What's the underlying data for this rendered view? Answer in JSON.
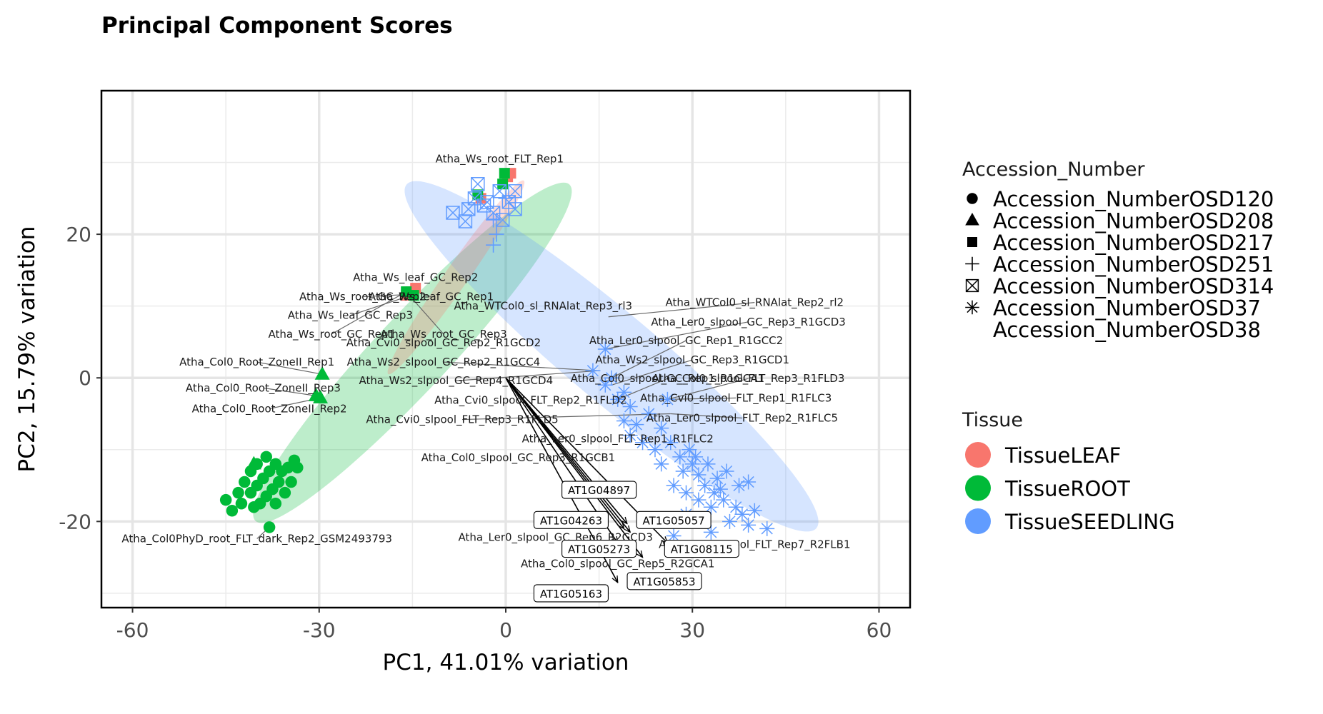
{
  "chart_data": {
    "type": "scatter",
    "title": "Principal Component Scores",
    "xlabel": "PC1, 41.01% variation",
    "ylabel": "PC2, 15.79% variation",
    "xlim": [
      -65,
      65
    ],
    "ylim": [
      -32,
      40
    ],
    "xticks": [
      -60,
      -30,
      0,
      30,
      60
    ],
    "xtick_labels": [
      "-60",
      "-30",
      "0",
      "30",
      "60"
    ],
    "yticks": [
      -20,
      0,
      20
    ],
    "ytick_labels": [
      "-20",
      "0",
      "20"
    ],
    "grid": true,
    "legend_position": "right",
    "tissue_colors": {
      "TissueLEAF": "#F8766D",
      "TissueROOT": "#00BA38",
      "TissueSEEDLING": "#619CFF"
    },
    "legends": {
      "shape": {
        "title": "Accession_Number",
        "entries": [
          {
            "label": "Accession_NumberOSD120",
            "shape": "circle"
          },
          {
            "label": "Accession_NumberOSD208",
            "shape": "triangle"
          },
          {
            "label": "Accession_NumberOSD217",
            "shape": "square"
          },
          {
            "label": "Accession_NumberOSD251",
            "shape": "plus"
          },
          {
            "label": "Accession_NumberOSD314",
            "shape": "boxcross"
          },
          {
            "label": "Accession_NumberOSD37",
            "shape": "asterisk"
          },
          {
            "label": "Accession_NumberOSD38",
            "shape": "none"
          }
        ]
      },
      "color": {
        "title": "Tissue",
        "entries": [
          {
            "label": "TissueLEAF",
            "color": "#F8766D"
          },
          {
            "label": "TissueROOT",
            "color": "#00BA38"
          },
          {
            "label": "TissueSEEDLING",
            "color": "#619CFF"
          }
        ]
      }
    },
    "ellipses": [
      {
        "tissue": "TissueROOT",
        "color": "#00BA38",
        "cx": -15,
        "cy": 3.5,
        "rx": 37,
        "ry": 5.2,
        "angle_deg": 47
      },
      {
        "tissue": "TissueSEEDLING",
        "color": "#619CFF",
        "cx": 17,
        "cy": 3,
        "rx": 43,
        "ry": 6.2,
        "angle_deg": -40
      },
      {
        "tissue": "TissueLEAF",
        "color": "#F8766D",
        "cx": -8,
        "cy": 14,
        "rx": 19,
        "ry": 1.6,
        "angle_deg": 55
      }
    ],
    "points": [
      {
        "tissue": "TissueROOT",
        "shape": "circle",
        "x": -45,
        "y": -17
      },
      {
        "tissue": "TissueROOT",
        "shape": "circle",
        "x": -44,
        "y": -18.5
      },
      {
        "tissue": "TissueROOT",
        "shape": "circle",
        "x": -43,
        "y": -16
      },
      {
        "tissue": "TissueROOT",
        "shape": "circle",
        "x": -42,
        "y": -14.5
      },
      {
        "tissue": "TissueROOT",
        "shape": "circle",
        "x": -42.5,
        "y": -17.5
      },
      {
        "tissue": "TissueROOT",
        "shape": "circle",
        "x": -41,
        "y": -13
      },
      {
        "tissue": "TissueROOT",
        "shape": "circle",
        "x": -41,
        "y": -16
      },
      {
        "tissue": "TissueROOT",
        "shape": "circle",
        "x": -40.5,
        "y": -18
      },
      {
        "tissue": "TissueROOT",
        "shape": "circle",
        "x": -40,
        "y": -12
      },
      {
        "tissue": "TissueROOT",
        "shape": "circle",
        "x": -40,
        "y": -15
      },
      {
        "tissue": "TissueROOT",
        "shape": "circle",
        "x": -39.5,
        "y": -17.5
      },
      {
        "tissue": "TissueROOT",
        "shape": "circle",
        "x": -39,
        "y": -14
      },
      {
        "tissue": "TissueROOT",
        "shape": "circle",
        "x": -38.5,
        "y": -11
      },
      {
        "tissue": "TissueROOT",
        "shape": "circle",
        "x": -38.5,
        "y": -16.5
      },
      {
        "tissue": "TissueROOT",
        "shape": "circle",
        "x": -38,
        "y": -13
      },
      {
        "tissue": "TissueROOT",
        "shape": "circle",
        "x": -37.5,
        "y": -15.5
      },
      {
        "tissue": "TissueROOT",
        "shape": "circle",
        "x": -37,
        "y": -12
      },
      {
        "tissue": "TissueROOT",
        "shape": "circle",
        "x": -37,
        "y": -17.5
      },
      {
        "tissue": "TissueROOT",
        "shape": "circle",
        "x": -36.5,
        "y": -14.5
      },
      {
        "tissue": "TissueROOT",
        "shape": "circle",
        "x": -36,
        "y": -13
      },
      {
        "tissue": "TissueROOT",
        "shape": "circle",
        "x": -35.5,
        "y": -16
      },
      {
        "tissue": "TissueROOT",
        "shape": "circle",
        "x": -35,
        "y": -12.5
      },
      {
        "tissue": "TissueROOT",
        "shape": "circle",
        "x": -34.5,
        "y": -14.5
      },
      {
        "tissue": "TissueROOT",
        "shape": "circle",
        "x": -34,
        "y": -11.5
      },
      {
        "tissue": "TissueROOT",
        "shape": "circle",
        "x": -33.5,
        "y": -12.5
      },
      {
        "tissue": "TissueROOT",
        "shape": "circle",
        "x": -38,
        "y": -20.8
      },
      {
        "tissue": "TissueROOT",
        "shape": "triangle",
        "x": -40.5,
        "y": -12
      },
      {
        "tissue": "TissueROOT",
        "shape": "triangle",
        "x": -29.5,
        "y": 0.5
      },
      {
        "tissue": "TissueROOT",
        "shape": "triangle",
        "x": -30.5,
        "y": -2.5
      },
      {
        "tissue": "TissueROOT",
        "shape": "triangle",
        "x": -29.8,
        "y": -2.8
      },
      {
        "tissue": "TissueLEAF",
        "shape": "square",
        "x": -16,
        "y": 11.5
      },
      {
        "tissue": "TissueLEAF",
        "shape": "square",
        "x": -15.2,
        "y": 12
      },
      {
        "tissue": "TissueLEAF",
        "shape": "square",
        "x": -14.5,
        "y": 12.5
      },
      {
        "tissue": "TissueLEAF",
        "shape": "square",
        "x": -4,
        "y": 25
      },
      {
        "tissue": "TissueLEAF",
        "shape": "square",
        "x": 0.3,
        "y": 28
      },
      {
        "tissue": "TissueLEAF",
        "shape": "square",
        "x": 0.8,
        "y": 28.5
      },
      {
        "tissue": "TissueROOT",
        "shape": "square",
        "x": -16,
        "y": 12
      },
      {
        "tissue": "TissueROOT",
        "shape": "square",
        "x": -14.8,
        "y": 11.5
      },
      {
        "tissue": "TissueROOT",
        "shape": "square",
        "x": -0.5,
        "y": 27
      },
      {
        "tissue": "TissueROOT",
        "shape": "square",
        "x": -0.2,
        "y": 28.5
      },
      {
        "tissue": "TissueROOT",
        "shape": "square",
        "x": -4.5,
        "y": 25.5
      },
      {
        "tissue": "TissueSEEDLING",
        "shape": "plus",
        "x": -2,
        "y": 22
      },
      {
        "tissue": "TissueSEEDLING",
        "shape": "plus",
        "x": -1.5,
        "y": 20
      },
      {
        "tissue": "TissueSEEDLING",
        "shape": "plus",
        "x": 0,
        "y": 25
      },
      {
        "tissue": "TissueSEEDLING",
        "shape": "plus",
        "x": -2,
        "y": 18.5
      },
      {
        "tissue": "TissueSEEDLING",
        "shape": "boxcross",
        "x": -8.5,
        "y": 23
      },
      {
        "tissue": "TissueSEEDLING",
        "shape": "boxcross",
        "x": -6.5,
        "y": 21.8
      },
      {
        "tissue": "TissueSEEDLING",
        "shape": "boxcross",
        "x": -6,
        "y": 23.5
      },
      {
        "tissue": "TissueSEEDLING",
        "shape": "boxcross",
        "x": -5,
        "y": 25
      },
      {
        "tissue": "TissueSEEDLING",
        "shape": "boxcross",
        "x": -4.5,
        "y": 27
      },
      {
        "tissue": "TissueSEEDLING",
        "shape": "boxcross",
        "x": -3,
        "y": 24.5
      },
      {
        "tissue": "TissueSEEDLING",
        "shape": "boxcross",
        "x": -2,
        "y": 23
      },
      {
        "tissue": "TissueSEEDLING",
        "shape": "boxcross",
        "x": -1,
        "y": 26
      },
      {
        "tissue": "TissueSEEDLING",
        "shape": "boxcross",
        "x": -0.5,
        "y": 22
      },
      {
        "tissue": "TissueSEEDLING",
        "shape": "boxcross",
        "x": 0.5,
        "y": 24.5
      },
      {
        "tissue": "TissueSEEDLING",
        "shape": "boxcross",
        "x": 1.5,
        "y": 26
      },
      {
        "tissue": "TissueSEEDLING",
        "shape": "boxcross",
        "x": 1.5,
        "y": 23.5
      },
      {
        "tissue": "TissueSEEDLING",
        "shape": "boxcross",
        "x": -3.5,
        "y": 24
      },
      {
        "tissue": "TissueSEEDLING",
        "shape": "asterisk",
        "x": 14,
        "y": 1
      },
      {
        "tissue": "TissueSEEDLING",
        "shape": "asterisk",
        "x": 16,
        "y": 4
      },
      {
        "tissue": "TissueSEEDLING",
        "shape": "asterisk",
        "x": 16,
        "y": -1
      },
      {
        "tissue": "TissueSEEDLING",
        "shape": "asterisk",
        "x": 17,
        "y": 0
      },
      {
        "tissue": "TissueSEEDLING",
        "shape": "asterisk",
        "x": 18,
        "y": -3
      },
      {
        "tissue": "TissueSEEDLING",
        "shape": "asterisk",
        "x": 19,
        "y": -2
      },
      {
        "tissue": "TissueSEEDLING",
        "shape": "asterisk",
        "x": 19,
        "y": -6
      },
      {
        "tissue": "TissueSEEDLING",
        "shape": "asterisk",
        "x": 20,
        "y": -4
      },
      {
        "tissue": "TissueSEEDLING",
        "shape": "asterisk",
        "x": 20,
        "y": -8
      },
      {
        "tissue": "TissueSEEDLING",
        "shape": "asterisk",
        "x": 21,
        "y": -6.5
      },
      {
        "tissue": "TissueSEEDLING",
        "shape": "asterisk",
        "x": 22,
        "y": -9
      },
      {
        "tissue": "TissueSEEDLING",
        "shape": "asterisk",
        "x": 23,
        "y": -5
      },
      {
        "tissue": "TissueSEEDLING",
        "shape": "asterisk",
        "x": 24,
        "y": -10
      },
      {
        "tissue": "TissueSEEDLING",
        "shape": "asterisk",
        "x": 25,
        "y": -7
      },
      {
        "tissue": "TissueSEEDLING",
        "shape": "asterisk",
        "x": 25,
        "y": -12
      },
      {
        "tissue": "TissueSEEDLING",
        "shape": "asterisk",
        "x": 26,
        "y": -3
      },
      {
        "tissue": "TissueSEEDLING",
        "shape": "asterisk",
        "x": 26.5,
        "y": -9
      },
      {
        "tissue": "TissueSEEDLING",
        "shape": "asterisk",
        "x": 27,
        "y": -15
      },
      {
        "tissue": "TissueSEEDLING",
        "shape": "asterisk",
        "x": 28,
        "y": -11
      },
      {
        "tissue": "TissueSEEDLING",
        "shape": "asterisk",
        "x": 28.5,
        "y": -13
      },
      {
        "tissue": "TissueSEEDLING",
        "shape": "asterisk",
        "x": 29,
        "y": -16
      },
      {
        "tissue": "TissueSEEDLING",
        "shape": "asterisk",
        "x": 29.5,
        "y": -10
      },
      {
        "tissue": "TissueSEEDLING",
        "shape": "asterisk",
        "x": 30,
        "y": -12
      },
      {
        "tissue": "TissueSEEDLING",
        "shape": "asterisk",
        "x": 30.5,
        "y": -11
      },
      {
        "tissue": "TissueSEEDLING",
        "shape": "asterisk",
        "x": 31,
        "y": -13.5
      },
      {
        "tissue": "TissueSEEDLING",
        "shape": "asterisk",
        "x": 31,
        "y": -17
      },
      {
        "tissue": "TissueSEEDLING",
        "shape": "asterisk",
        "x": 32,
        "y": -15
      },
      {
        "tissue": "TissueSEEDLING",
        "shape": "asterisk",
        "x": 32.5,
        "y": -12
      },
      {
        "tissue": "TissueSEEDLING",
        "shape": "asterisk",
        "x": 33,
        "y": -18
      },
      {
        "tissue": "TissueSEEDLING",
        "shape": "asterisk",
        "x": 33.5,
        "y": -16
      },
      {
        "tissue": "TissueSEEDLING",
        "shape": "asterisk",
        "x": 34,
        "y": -14
      },
      {
        "tissue": "TissueSEEDLING",
        "shape": "asterisk",
        "x": 34.5,
        "y": -15.5
      },
      {
        "tissue": "TissueSEEDLING",
        "shape": "asterisk",
        "x": 35,
        "y": -17
      },
      {
        "tissue": "TissueSEEDLING",
        "shape": "asterisk",
        "x": 35.5,
        "y": -13
      },
      {
        "tissue": "TissueSEEDLING",
        "shape": "asterisk",
        "x": 36,
        "y": -20
      },
      {
        "tissue": "TissueSEEDLING",
        "shape": "asterisk",
        "x": 37,
        "y": -18
      },
      {
        "tissue": "TissueSEEDLING",
        "shape": "asterisk",
        "x": 37.5,
        "y": -15
      },
      {
        "tissue": "TissueSEEDLING",
        "shape": "asterisk",
        "x": 38,
        "y": -19
      },
      {
        "tissue": "TissueSEEDLING",
        "shape": "asterisk",
        "x": 39,
        "y": -14.5
      },
      {
        "tissue": "TissueSEEDLING",
        "shape": "asterisk",
        "x": 39,
        "y": -20.5
      },
      {
        "tissue": "TissueSEEDLING",
        "shape": "asterisk",
        "x": 40,
        "y": -18.5
      },
      {
        "tissue": "TissueSEEDLING",
        "shape": "asterisk",
        "x": 42,
        "y": -21
      },
      {
        "tissue": "TissueSEEDLING",
        "shape": "asterisk",
        "x": 25,
        "y": -20
      },
      {
        "tissue": "TissueSEEDLING",
        "shape": "asterisk",
        "x": 27,
        "y": -22
      },
      {
        "tissue": "TissueSEEDLING",
        "shape": "asterisk",
        "x": 29,
        "y": -19
      },
      {
        "tissue": "TissueSEEDLING",
        "shape": "asterisk",
        "x": 33,
        "y": -21.5
      }
    ],
    "point_labels": [
      {
        "text": "Atha_Ws_root_FLT_Rep1",
        "x": -1,
        "y": 30.5,
        "px": -1,
        "py": 30.5
      },
      {
        "text": "Atha_Ws_leaf_GC_Rep2",
        "x": -14.5,
        "y": 14,
        "px": -14.5,
        "py": 14
      },
      {
        "text": "Atha_Ws_root_GC_Rep2",
        "x": -23,
        "y": 11.3,
        "px": -16,
        "py": 11.6
      },
      {
        "text": "Atha_Ws_leaf_GC_Rep1",
        "x": -12,
        "y": 11.3,
        "px": -14.5,
        "py": 12
      },
      {
        "text": "Atha_Ws_leaf_GC_Rep3",
        "x": -25,
        "y": 8.7,
        "px": -15.2,
        "py": 11.5
      },
      {
        "text": "Atha_Ws_root_GC_Rep3",
        "x": -10,
        "y": 6.1,
        "px": -15,
        "py": 11
      },
      {
        "text": "Atha_Ws_root_GC_Rep1",
        "x": -28,
        "y": 6.1,
        "px": -16,
        "py": 12
      },
      {
        "text": "Atha_WTCol0_sl_RNAlat_Rep3_rl3",
        "x": 6,
        "y": 10,
        "px": 6,
        "py": 10
      },
      {
        "text": "Atha_WTCol0_sl_RNAlat_Rep2_rl2",
        "x": 40,
        "y": 10.5,
        "px": 16.5,
        "py": 8.5
      },
      {
        "text": "Atha_Ler0_slpool_GC_Rep3_R1GCD3",
        "x": 39,
        "y": 7.8,
        "px": 16,
        "py": 4
      },
      {
        "text": "Atha_Ler0_slpool_GC_Rep1_R1GCC2",
        "x": 29,
        "y": 5.2,
        "px": 17,
        "py": 0
      },
      {
        "text": "Atha_Cvi0_slpool_GC_Rep2_R1GCD2",
        "x": -10,
        "y": 4.9,
        "px": -10,
        "py": 4.9
      },
      {
        "text": "Atha_Ws2_slpool_GC_Rep3_R1GCD1",
        "x": 30,
        "y": 2.5,
        "px": 17,
        "py": -1
      },
      {
        "text": "Atha_Col0_Root_ZoneII_Rep1",
        "x": -40,
        "y": 2.2,
        "px": -29.5,
        "py": 0.5
      },
      {
        "text": "Atha_Ws2_slpool_GC_Rep2_R1GCC4",
        "x": -10,
        "y": 2.2,
        "px": 15,
        "py": 1
      },
      {
        "text": "Atha_Col0_slpool_GC_Rep1_R1GCA1",
        "x": 26,
        "y": -0.1,
        "px": 18,
        "py": -3
      },
      {
        "text": "Atha_Col0_slpool_FLT_Rep3_R1FLD3",
        "x": 39,
        "y": -0.1,
        "px": 26,
        "py": -3
      },
      {
        "text": "Atha_Ws2_slpool_GC_Rep4_R1GCD4",
        "x": -8,
        "y": -0.4,
        "px": 15,
        "py": 1
      },
      {
        "text": "Atha_Col0_Root_ZoneII_Rep3",
        "x": -39,
        "y": -1.4,
        "px": -30.5,
        "py": -2.5
      },
      {
        "text": "Atha_Cvi0_slpool_FLT_Rep2_R1FLD2",
        "x": 4,
        "y": -3.1,
        "px": 4,
        "py": -3.1
      },
      {
        "text": "Atha_Cvi0_slpool_FLT_Rep1_R1FLC3",
        "x": 37,
        "y": -2.8,
        "px": 26,
        "py": -3
      },
      {
        "text": "Atha_Col0_Root_ZoneII_Rep2",
        "x": -38,
        "y": -4.3,
        "px": -29.8,
        "py": -2.8
      },
      {
        "text": "Atha_Ler0_slpool_FLT_Rep2_R1FLC5",
        "x": 38,
        "y": -5.6,
        "px": 26.5,
        "py": -5
      },
      {
        "text": "Atha_Cvi0_slpool_FLT_Rep3_R1FLD5",
        "x": -7,
        "y": -5.8,
        "px": 26.5,
        "py": -5
      },
      {
        "text": "Atha_Ler0_slpool_FLT_Rep1_R1FLC2",
        "x": 18,
        "y": -8.5,
        "px": 18,
        "py": -8.5
      },
      {
        "text": "Atha_Col0_slpool_GC_Rep3_R1GCB1",
        "x": 2,
        "y": -11.1,
        "px": 2,
        "py": -11.1
      },
      {
        "text": "Atha_Col0PhyD_root_FLT_dark_Rep2_GSM2493793",
        "x": -40,
        "y": -22.4,
        "px": -38,
        "py": -20.8
      },
      {
        "text": "Atha_Ler0_slpool_GC_Rep6_R2GCD3",
        "x": 8,
        "y": -22.2,
        "px": 8,
        "py": -22.2
      },
      {
        "text": "Atha_Col0_slpool_FLT_Rep7_R2FLB1",
        "x": 40,
        "y": -23.2,
        "px": 40,
        "py": -23.2
      },
      {
        "text": "Atha_Col0_slpool_GC_Rep5_R2GCA1",
        "x": 18,
        "y": -25.9,
        "px": 18,
        "py": -25.9
      }
    ],
    "loadings": [
      {
        "gene": "AT1G04897",
        "tip_x": 19.5,
        "tip_y": -20.3,
        "label_x": 15,
        "label_y": -15.6
      },
      {
        "gene": "AT1G04263",
        "tip_x": 19,
        "tip_y": -21,
        "label_x": 10.5,
        "label_y": -19.8
      },
      {
        "gene": "AT1G05057",
        "tip_x": 20,
        "tip_y": -21.5,
        "label_x": 27,
        "label_y": -19.8
      },
      {
        "gene": "AT1G05273",
        "tip_x": 18,
        "tip_y": -23,
        "label_x": 15,
        "label_y": -23.8
      },
      {
        "gene": "AT1G08115",
        "tip_x": 26,
        "tip_y": -23,
        "label_x": 31.5,
        "label_y": -23.8
      },
      {
        "gene": "AT1G05853",
        "tip_x": 22,
        "tip_y": -25,
        "label_x": 25.5,
        "label_y": -28.3
      },
      {
        "gene": "AT1G05163",
        "tip_x": 18,
        "tip_y": -28.5,
        "label_x": 10.5,
        "label_y": -30
      }
    ]
  }
}
